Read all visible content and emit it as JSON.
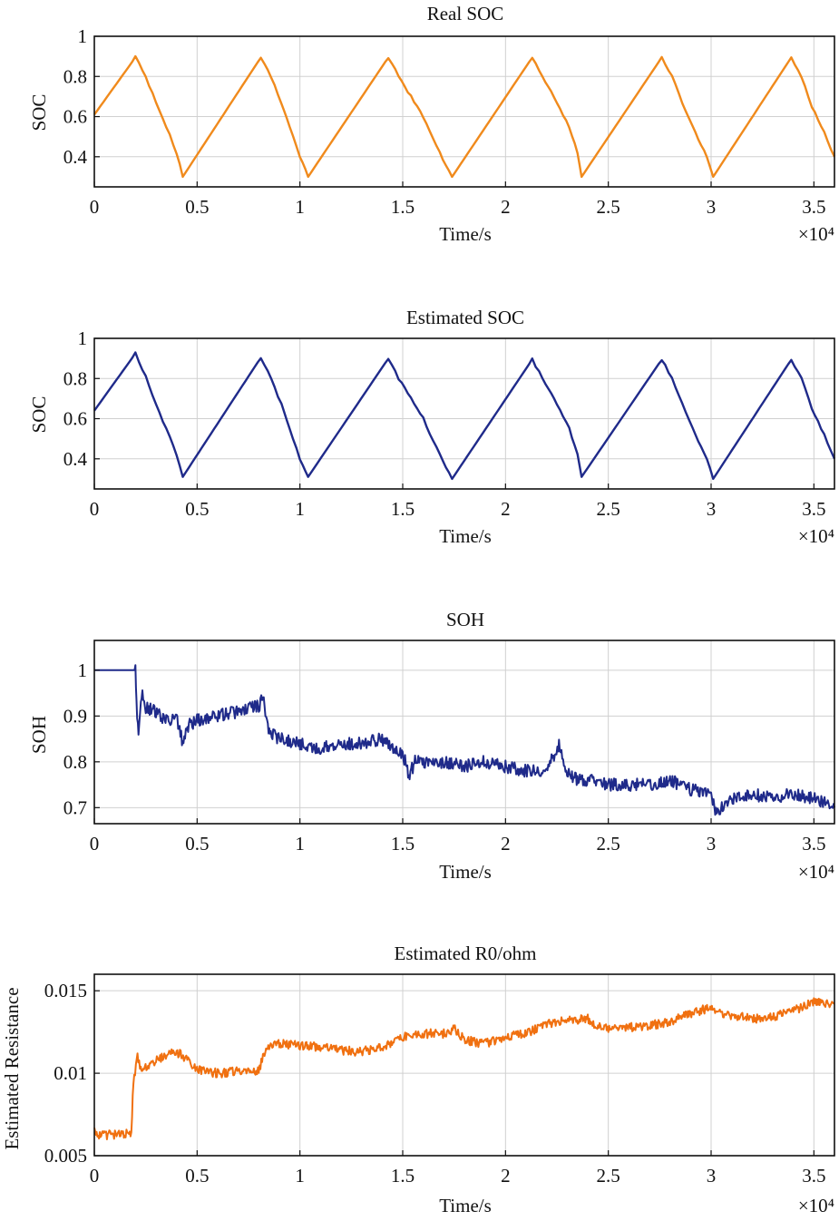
{
  "figure": {
    "background": "#ffffff",
    "grid_color": "#d0d0d0",
    "axis_color": "#111111"
  },
  "chart_data": [
    {
      "type": "line",
      "title": "Real SOC",
      "xlabel": "Time/s",
      "ylabel": "SOC",
      "x_multiplier_label": "×10⁴",
      "xlim": [
        0,
        36000
      ],
      "ylim": [
        0.25,
        1.0
      ],
      "xticks": [
        0,
        5000,
        10000,
        15000,
        20000,
        25000,
        30000,
        35000
      ],
      "xtick_labels": [
        "0",
        "0.5",
        "1",
        "1.5",
        "2",
        "2.5",
        "3",
        "3.5"
      ],
      "yticks": [
        0.4,
        0.6,
        0.8,
        1.0
      ],
      "ytick_labels": [
        "0.4",
        "0.6",
        "0.8",
        "1"
      ],
      "grid": true,
      "series": [
        {
          "color": "#f08a1c",
          "x": [
            0,
            2000,
            2500,
            3000,
            3500,
            4000,
            4300,
            8100,
            8600,
            9100,
            9500,
            10000,
            10400,
            14300,
            14800,
            15400,
            16000,
            16800,
            17400,
            21300,
            21800,
            22500,
            23100,
            23500,
            23700,
            27600,
            28100,
            28600,
            29100,
            29800,
            30100,
            33900,
            34400,
            34900,
            35500,
            36000
          ],
          "y": [
            0.61,
            0.895,
            0.8,
            0.67,
            0.55,
            0.42,
            0.3,
            0.895,
            0.8,
            0.67,
            0.55,
            0.4,
            0.3,
            0.895,
            0.8,
            0.7,
            0.6,
            0.42,
            0.3,
            0.895,
            0.8,
            0.67,
            0.55,
            0.42,
            0.3,
            0.895,
            0.8,
            0.67,
            0.55,
            0.4,
            0.3,
            0.895,
            0.8,
            0.65,
            0.52,
            0.4
          ]
        }
      ]
    },
    {
      "type": "line",
      "title": "Estimated SOC",
      "xlabel": "Time/s",
      "ylabel": "SOC",
      "x_multiplier_label": "×10⁴",
      "xlim": [
        0,
        36000
      ],
      "ylim": [
        0.25,
        1.0
      ],
      "xticks": [
        0,
        5000,
        10000,
        15000,
        20000,
        25000,
        30000,
        35000
      ],
      "xtick_labels": [
        "0",
        "0.5",
        "1",
        "1.5",
        "2",
        "2.5",
        "3",
        "3.5"
      ],
      "yticks": [
        0.4,
        0.6,
        0.8,
        1.0
      ],
      "ytick_labels": [
        "0.4",
        "0.6",
        "0.8",
        "1"
      ],
      "grid": true,
      "series": [
        {
          "color": "#1f2a8a",
          "x": [
            0,
            2000,
            2500,
            3000,
            3500,
            4000,
            4300,
            8100,
            8600,
            9100,
            9500,
            10000,
            10400,
            14300,
            14800,
            15400,
            16000,
            16800,
            17400,
            21300,
            21800,
            22500,
            23100,
            23500,
            23700,
            27600,
            28100,
            28600,
            29100,
            29800,
            30100,
            33900,
            34400,
            34900,
            35500,
            36000
          ],
          "y": [
            0.64,
            0.925,
            0.81,
            0.67,
            0.55,
            0.42,
            0.31,
            0.905,
            0.8,
            0.67,
            0.55,
            0.4,
            0.31,
            0.9,
            0.8,
            0.7,
            0.6,
            0.42,
            0.3,
            0.895,
            0.8,
            0.67,
            0.55,
            0.42,
            0.31,
            0.895,
            0.8,
            0.67,
            0.55,
            0.4,
            0.3,
            0.895,
            0.8,
            0.65,
            0.52,
            0.4
          ]
        }
      ]
    },
    {
      "type": "line",
      "title": "SOH",
      "xlabel": "Time/s",
      "ylabel": "SOH",
      "x_multiplier_label": "×10⁴",
      "xlim": [
        0,
        36000
      ],
      "ylim": [
        0.665,
        1.065
      ],
      "xticks": [
        0,
        5000,
        10000,
        15000,
        20000,
        25000,
        30000,
        35000
      ],
      "xtick_labels": [
        "0",
        "0.5",
        "1",
        "1.5",
        "2",
        "2.5",
        "3",
        "3.5"
      ],
      "yticks": [
        0.7,
        0.8,
        0.9,
        1.0
      ],
      "ytick_labels": [
        "0.7",
        "0.8",
        "0.9",
        "1"
      ],
      "grid": true,
      "series": [
        {
          "color": "#1f2a8a",
          "x": [
            0,
            1000,
            2000,
            2050,
            2150,
            2300,
            2500,
            3000,
            3500,
            4000,
            4300,
            4600,
            5000,
            6000,
            7000,
            7500,
            8000,
            8200,
            8400,
            8700,
            9000,
            10000,
            11000,
            12000,
            13000,
            14000,
            14500,
            15000,
            15300,
            15600,
            16000,
            17000,
            18000,
            19000,
            20000,
            21000,
            22000,
            22600,
            23000,
            23500,
            24000,
            25000,
            26000,
            27000,
            28000,
            29000,
            30000,
            30200,
            31000,
            32000,
            33000,
            34000,
            35000,
            36000
          ],
          "y": [
            1.0,
            1.0,
            1.0,
            0.93,
            0.85,
            0.95,
            0.92,
            0.91,
            0.89,
            0.9,
            0.84,
            0.88,
            0.89,
            0.9,
            0.91,
            0.92,
            0.92,
            0.94,
            0.88,
            0.86,
            0.85,
            0.84,
            0.83,
            0.84,
            0.84,
            0.85,
            0.83,
            0.82,
            0.77,
            0.8,
            0.8,
            0.8,
            0.79,
            0.8,
            0.79,
            0.78,
            0.78,
            0.84,
            0.78,
            0.76,
            0.76,
            0.75,
            0.75,
            0.75,
            0.76,
            0.74,
            0.73,
            0.69,
            0.72,
            0.73,
            0.72,
            0.73,
            0.72,
            0.7
          ]
        }
      ]
    },
    {
      "type": "line",
      "title": "Estimated R0/ohm",
      "xlabel": "Time/s",
      "ylabel": "Estimated Resistance",
      "x_multiplier_label": "×10⁴",
      "xlim": [
        0,
        36000
      ],
      "ylim": [
        0.005,
        0.016
      ],
      "xticks": [
        0,
        5000,
        10000,
        15000,
        20000,
        25000,
        30000,
        35000
      ],
      "xtick_labels": [
        "0",
        "0.5",
        "1",
        "1.5",
        "2",
        "2.5",
        "3",
        "3.5"
      ],
      "yticks": [
        0.005,
        0.01,
        0.015
      ],
      "ytick_labels": [
        "0.005",
        "0.01",
        "0.015"
      ],
      "grid": true,
      "series": [
        {
          "color": "#f07010",
          "x": [
            0,
            300,
            1000,
            1800,
            1900,
            2100,
            2300,
            3000,
            4000,
            4600,
            5000,
            6000,
            7000,
            8000,
            8200,
            8500,
            9000,
            10000,
            11000,
            12000,
            13000,
            14000,
            15000,
            16000,
            17000,
            17500,
            18000,
            19000,
            20000,
            21000,
            22000,
            23000,
            24000,
            24500,
            25000,
            26000,
            27000,
            28000,
            29000,
            30000,
            30500,
            31000,
            32000,
            33000,
            34000,
            35000,
            36000
          ],
          "y": [
            0.0065,
            0.0062,
            0.0063,
            0.0064,
            0.0095,
            0.011,
            0.0102,
            0.0108,
            0.0113,
            0.0108,
            0.0102,
            0.01,
            0.0101,
            0.0101,
            0.011,
            0.0117,
            0.0118,
            0.0117,
            0.0116,
            0.0114,
            0.0113,
            0.0116,
            0.0122,
            0.0124,
            0.0124,
            0.0127,
            0.012,
            0.0118,
            0.0122,
            0.0124,
            0.013,
            0.0132,
            0.0133,
            0.0128,
            0.0127,
            0.0128,
            0.0129,
            0.0131,
            0.0136,
            0.014,
            0.0136,
            0.0135,
            0.0133,
            0.0134,
            0.0138,
            0.0143,
            0.0142
          ]
        }
      ]
    }
  ]
}
